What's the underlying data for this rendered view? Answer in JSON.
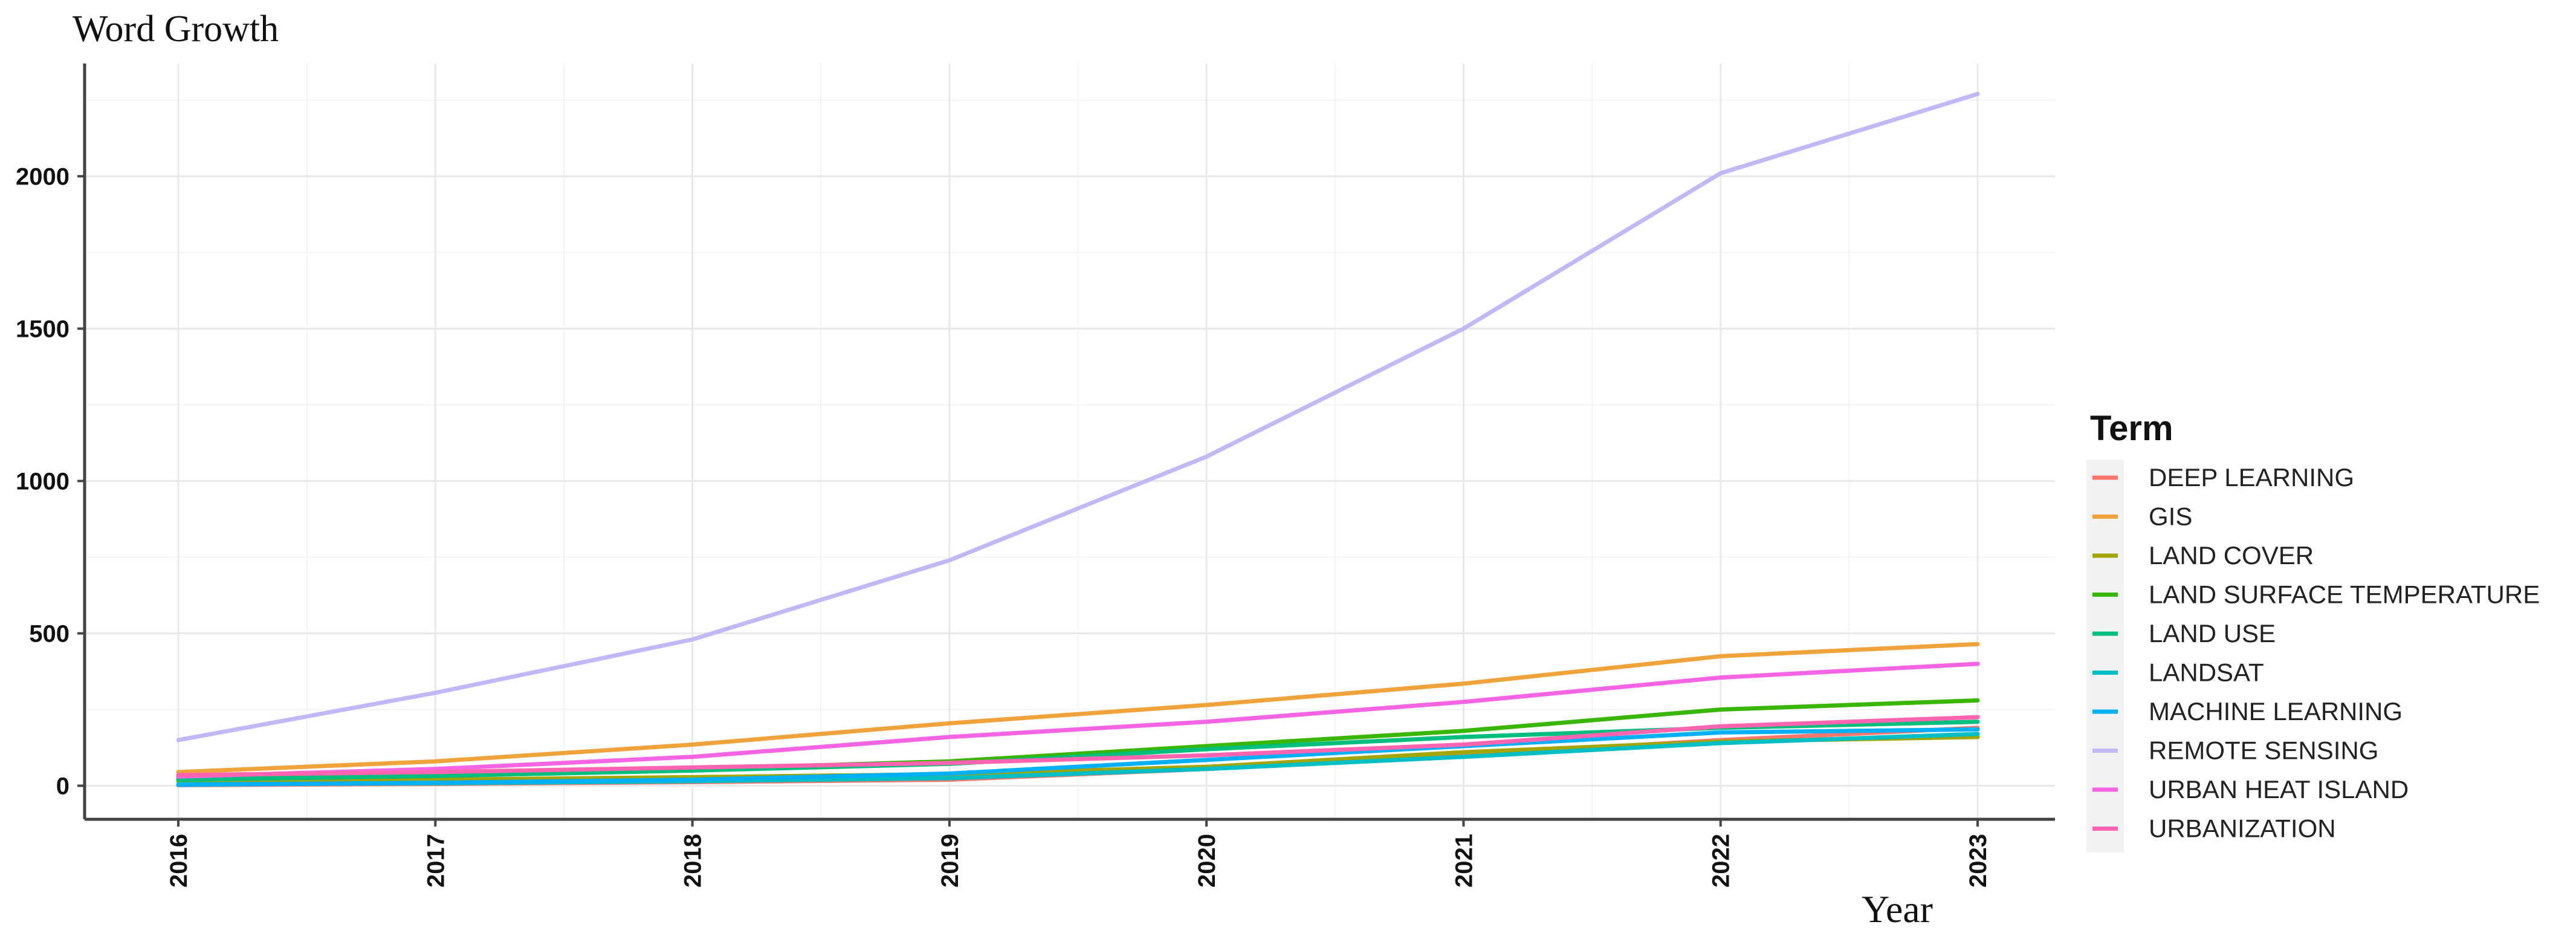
{
  "chart_data": {
    "type": "line",
    "ylabel": "Word Growth",
    "xlabel": "Year",
    "x": [
      "2016",
      "2017",
      "2018",
      "2019",
      "2020",
      "2021",
      "2022",
      "2023"
    ],
    "ylim": [
      -110,
      2370
    ],
    "yticks": [
      0,
      500,
      1000,
      1500,
      2000
    ],
    "grid": true,
    "legend_title": "Term",
    "legend_position": "right",
    "series": [
      {
        "name": "DEEP LEARNING",
        "color": "#f8766d",
        "values": [
          2,
          6,
          12,
          20,
          55,
          100,
          150,
          190
        ]
      },
      {
        "name": "GIS",
        "color": "#f0a33a",
        "values": [
          45,
          80,
          135,
          205,
          265,
          335,
          425,
          465
        ]
      },
      {
        "name": "LAND COVER",
        "color": "#a3a500",
        "values": [
          15,
          20,
          28,
          38,
          62,
          110,
          145,
          160
        ]
      },
      {
        "name": "LAND SURFACE TEMPERATURE",
        "color": "#39b600",
        "values": [
          25,
          35,
          55,
          80,
          130,
          180,
          250,
          280
        ]
      },
      {
        "name": "LAND USE",
        "color": "#00bf7d",
        "values": [
          20,
          32,
          50,
          72,
          120,
          160,
          190,
          210
        ]
      },
      {
        "name": "LANDSAT",
        "color": "#00bfc4",
        "values": [
          5,
          8,
          15,
          25,
          55,
          95,
          140,
          170
        ]
      },
      {
        "name": "MACHINE LEARNING",
        "color": "#00b0f6",
        "values": [
          3,
          10,
          20,
          40,
          85,
          130,
          175,
          185
        ]
      },
      {
        "name": "REMOTE SENSING",
        "color": "#c3b7f5",
        "values": [
          150,
          305,
          480,
          740,
          1080,
          1500,
          2010,
          2270
        ]
      },
      {
        "name": "URBAN HEAT ISLAND",
        "color": "#f564e3",
        "values": [
          30,
          55,
          95,
          160,
          210,
          275,
          355,
          400
        ]
      },
      {
        "name": "URBANIZATION",
        "color": "#ff64b0",
        "values": [
          35,
          45,
          60,
          75,
          100,
          135,
          195,
          225
        ]
      }
    ]
  }
}
